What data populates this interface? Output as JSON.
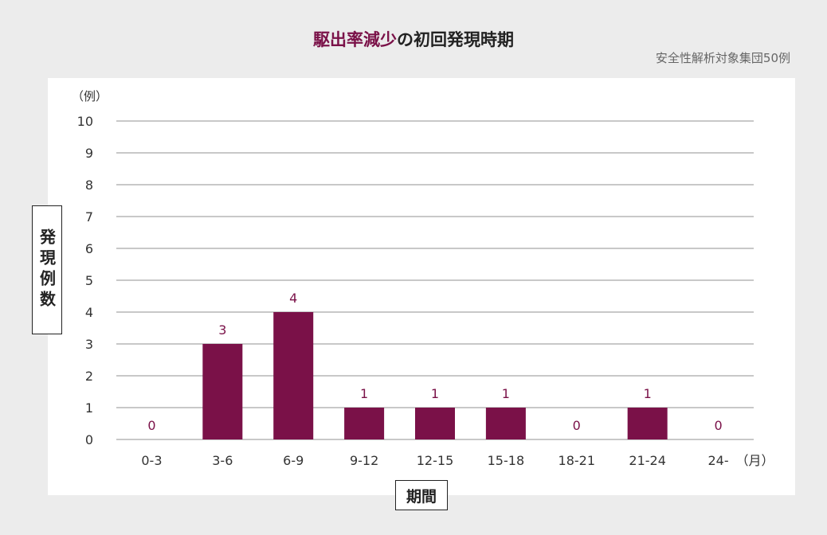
{
  "header": {
    "title_accent": "駆出率減少",
    "title_rest": "の初回発現時期",
    "subtitle": "安全性解析対象集団50例"
  },
  "chart_data": {
    "type": "bar",
    "title": "駆出率減少の初回発現時期",
    "subtitle": "安全性解析対象集団50例",
    "categories": [
      "0-3",
      "3-6",
      "6-9",
      "9-12",
      "12-15",
      "15-18",
      "18-21",
      "21-24",
      "24-"
    ],
    "values": [
      0,
      3,
      4,
      1,
      1,
      1,
      0,
      1,
      0
    ],
    "xlabel": "期間",
    "x_unit": "（月）",
    "ylabel": "発現例数",
    "y_unit": "（例）",
    "ylim": [
      0,
      10
    ],
    "yticks": [
      0,
      1,
      2,
      3,
      4,
      5,
      6,
      7,
      8,
      9,
      10
    ],
    "grid": true,
    "bar_color": "#7a1148",
    "label_color": "#7a1148"
  }
}
